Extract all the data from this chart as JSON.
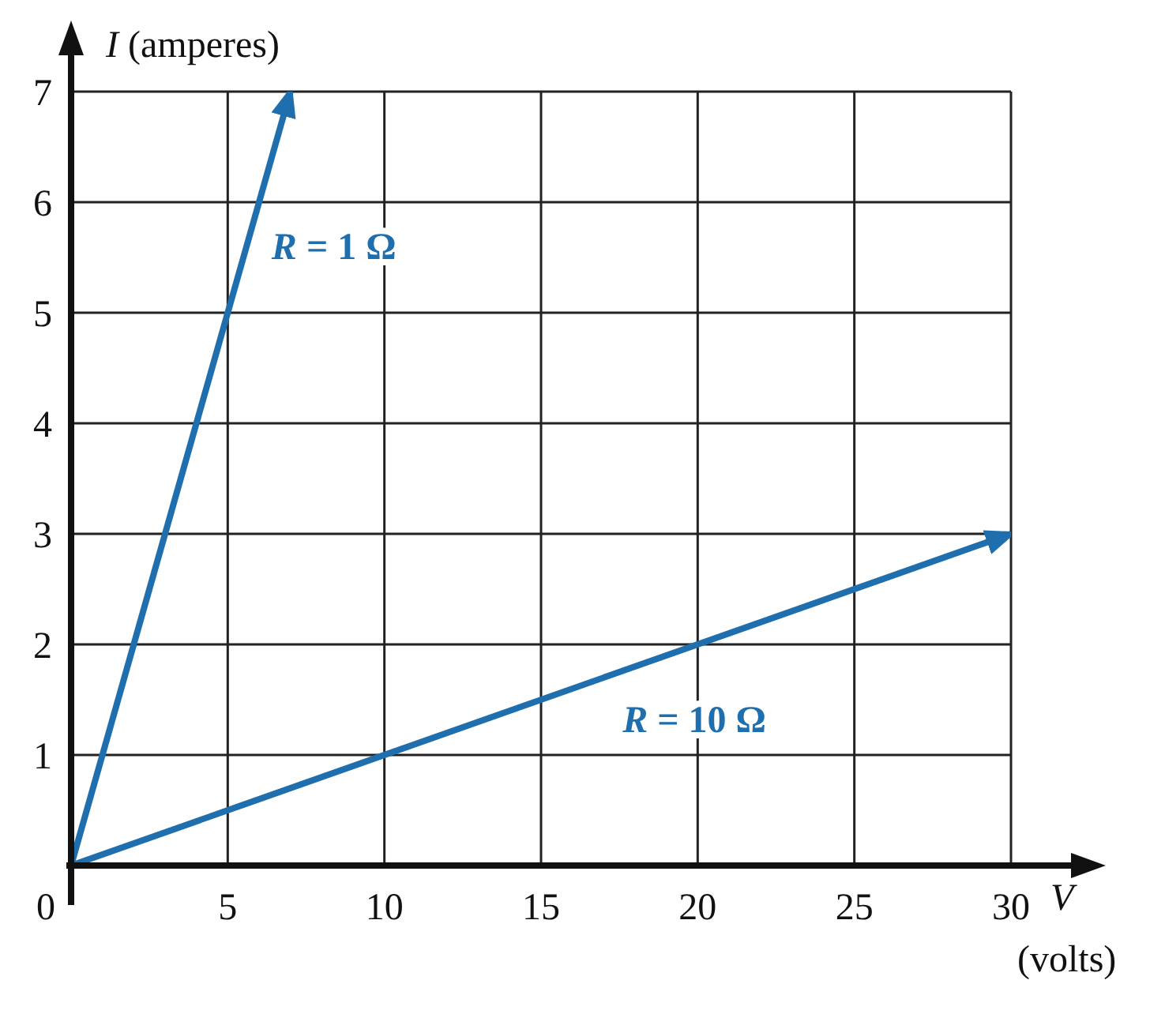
{
  "chart_data": {
    "type": "line",
    "xlabel": "V (volts)",
    "ylabel": "I (amperes)",
    "xlim": [
      0,
      30
    ],
    "ylim": [
      0,
      7
    ],
    "xticks": [
      0,
      5,
      10,
      15,
      20,
      25,
      30
    ],
    "yticks": [
      1,
      2,
      3,
      4,
      5,
      6,
      7
    ],
    "grid": true,
    "legend": false,
    "marker": "none",
    "line_style": "solid",
    "series": [
      {
        "name": "R = 1 Ω",
        "color": "#1f6fae",
        "x": [
          0,
          7
        ],
        "values": [
          0,
          7
        ]
      },
      {
        "name": "R = 10 Ω",
        "color": "#1f6fae",
        "x": [
          0,
          30
        ],
        "values": [
          0,
          3
        ]
      }
    ]
  }
}
